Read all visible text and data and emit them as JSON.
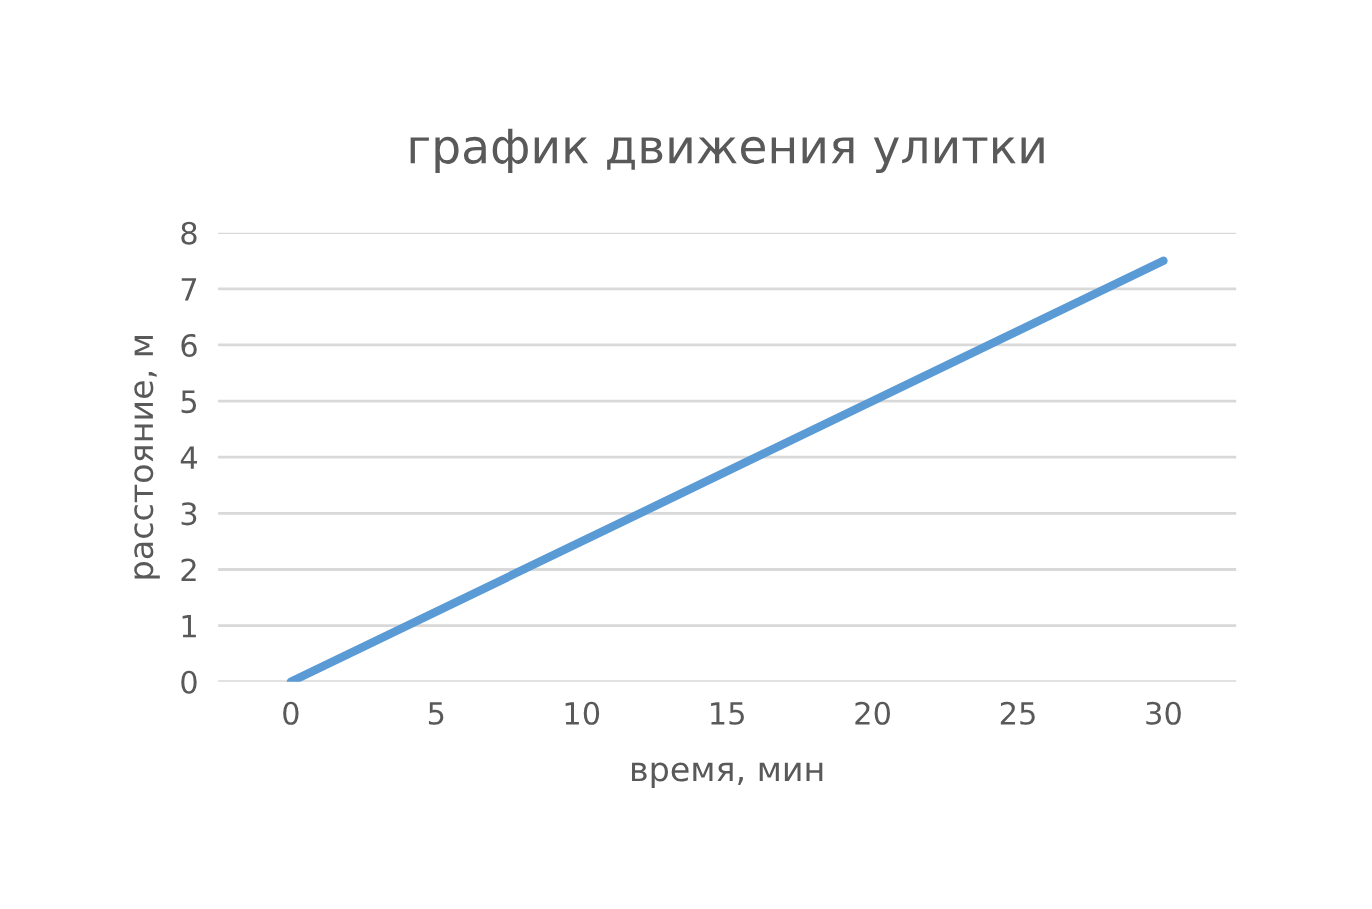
{
  "chart_data": {
    "type": "line",
    "title": "график движения улитки",
    "xlabel": "время, мин",
    "ylabel": "расстояние, м",
    "x": [
      0,
      30
    ],
    "series": [
      {
        "color": "#5b9bd5",
        "values": [
          0,
          7.5
        ]
      }
    ],
    "xlim": [
      -2.5,
      32.5
    ],
    "xticks": [
      0,
      5,
      10,
      15,
      20,
      25,
      30
    ],
    "ylim": [
      0,
      8
    ],
    "yticks": [
      0,
      1,
      2,
      3,
      4,
      5,
      6,
      7,
      8
    ],
    "grid": "y",
    "legend": false,
    "marker": "none",
    "line_style": "solid"
  }
}
